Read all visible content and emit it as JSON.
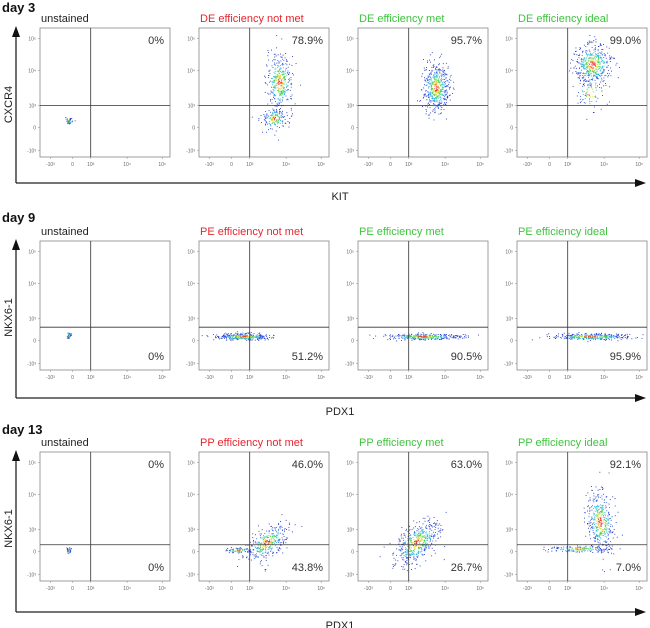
{
  "colors": {
    "not_met": "#e5262f",
    "met": "#3fc43f",
    "unstained": "#222222"
  },
  "tick_labels": [
    "-10³",
    "0",
    "10³",
    "10⁴",
    "10⁵"
  ],
  "chart_data": [
    {
      "type": "scatter",
      "row_label": "day 3",
      "xlabel": "KIT",
      "ylabel": "CXCR4",
      "gate": {
        "x": 1000,
        "y": 1000
      },
      "panels": [
        {
          "title": "unstained",
          "status": "unstained",
          "quadrants": {
            "upper_right": "0%"
          }
        },
        {
          "title": "DE efficiency not met",
          "status": "not_met",
          "quadrants": {
            "upper_right": "78.9%"
          }
        },
        {
          "title": "DE efficiency met",
          "status": "met",
          "quadrants": {
            "upper_right": "95.7%"
          }
        },
        {
          "title": "DE efficiency ideal",
          "status": "met",
          "quadrants": {
            "upper_right": "99.0%"
          }
        }
      ]
    },
    {
      "type": "scatter",
      "row_label": "day 9",
      "xlabel": "PDX1",
      "ylabel": "NKX6-1",
      "gate": {
        "x": 1000,
        "y": 600
      },
      "panels": [
        {
          "title": "unstained",
          "status": "unstained",
          "quadrants": {
            "lower_right": "0%"
          }
        },
        {
          "title": "PE efficiency not met",
          "status": "not_met",
          "quadrants": {
            "lower_right": "51.2%"
          }
        },
        {
          "title": "PE efficiency met",
          "status": "met",
          "quadrants": {
            "lower_right": "90.5%"
          }
        },
        {
          "title": "PE efficiency ideal",
          "status": "met",
          "quadrants": {
            "lower_right": "95.9%"
          }
        }
      ]
    },
    {
      "type": "scatter",
      "row_label": "day 13",
      "xlabel": "PDX1",
      "ylabel": "NKX6-1",
      "gate": {
        "x": 1000,
        "y": 300
      },
      "panels": [
        {
          "title": "unstained",
          "status": "unstained",
          "quadrants": {
            "upper_right": "0%",
            "lower_right": "0%"
          }
        },
        {
          "title": "PP efficiency not met",
          "status": "not_met",
          "quadrants": {
            "upper_right": "46.0%",
            "lower_right": "43.8%"
          }
        },
        {
          "title": "PP efficiency met",
          "status": "met",
          "quadrants": {
            "upper_right": "63.0%",
            "lower_right": "26.7%"
          }
        },
        {
          "title": "PP efficiency ideal",
          "status": "met",
          "quadrants": {
            "upper_right": "92.1%",
            "lower_right": "7.0%"
          }
        }
      ]
    }
  ]
}
